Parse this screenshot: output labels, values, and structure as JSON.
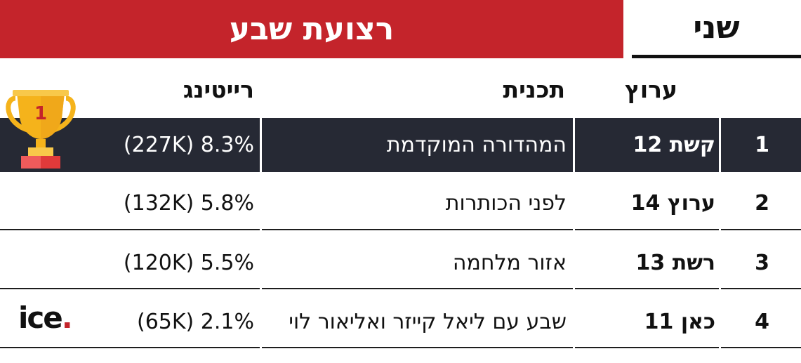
{
  "header": {
    "title": "רצועת שבע",
    "day": "שני"
  },
  "columns": {
    "channel": "ערוץ",
    "program": "תכנית",
    "rating": "רייטינג"
  },
  "rows": [
    {
      "rank": "1",
      "channel": "קשת 12",
      "program": "המהדורה המוקדמת",
      "rating": "(227K) 8.3%"
    },
    {
      "rank": "2",
      "channel": "ערוץ 14",
      "program": "לפני הכותרות",
      "rating": "(132K) 5.8%"
    },
    {
      "rank": "3",
      "channel": "רשת 13",
      "program": "אזור מלחמה",
      "rating": "(120K) 5.5%"
    },
    {
      "rank": "4",
      "channel": "כאן 11",
      "program": "שבע עם ליאל קייזר ואליאור לוי",
      "rating": "(65K) 2.1%"
    }
  ],
  "trophy": {
    "rank": "1"
  },
  "logo": {
    "text": "ice",
    "dot": "."
  },
  "colors": {
    "accent": "#c4242b",
    "dark_row": "#262934",
    "gold": "#f5b31b"
  }
}
